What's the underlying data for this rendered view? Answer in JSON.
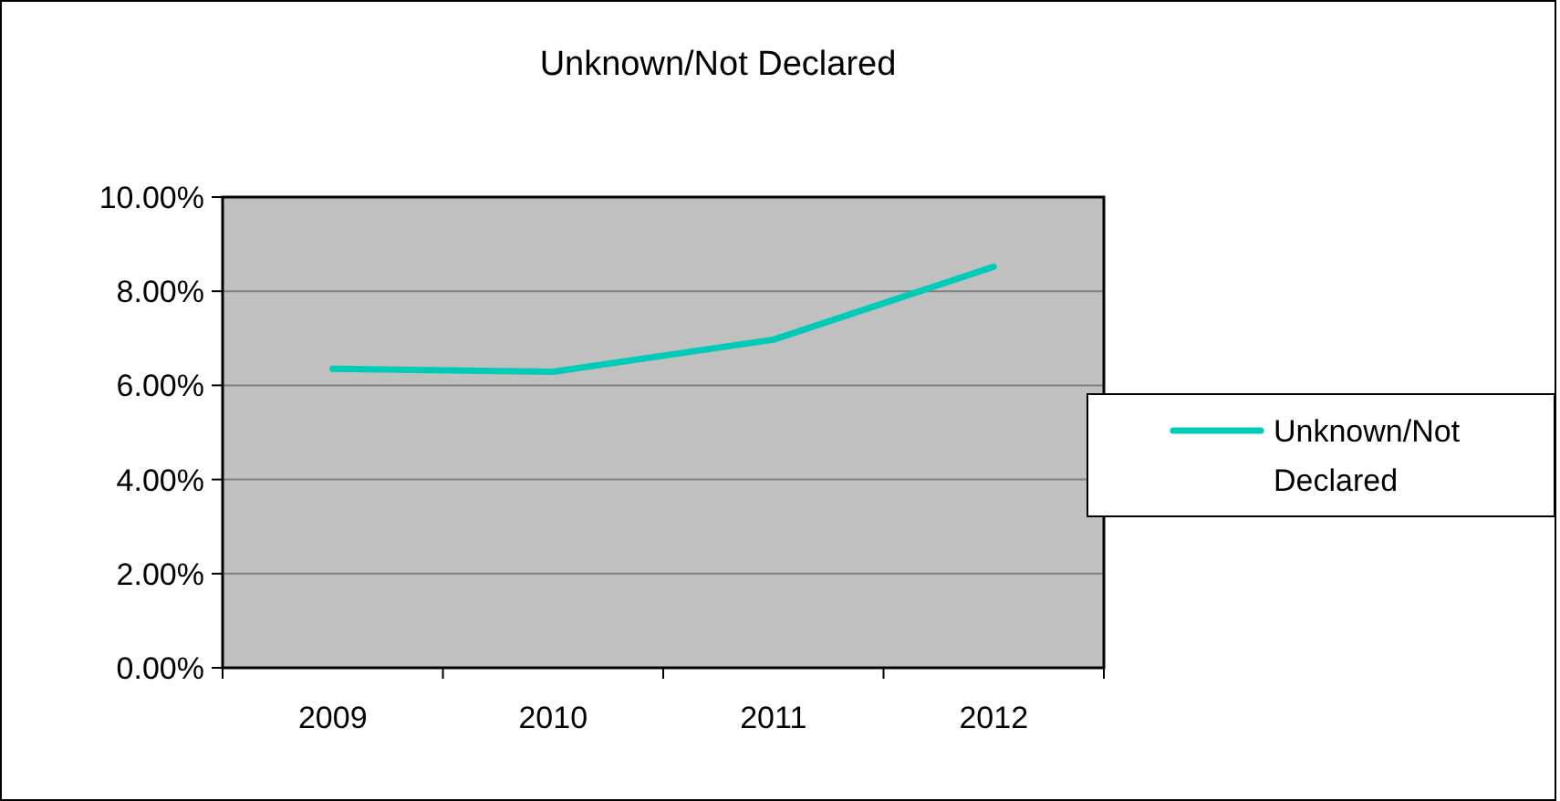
{
  "chart_data": {
    "type": "line",
    "title": "Unknown/Not Declared",
    "categories": [
      "2009",
      "2010",
      "2011",
      "2012"
    ],
    "series": [
      {
        "name": "Unknown/Not Declared",
        "color": "#00cbb8",
        "values": [
          6.35,
          6.29,
          6.97,
          8.52
        ]
      }
    ],
    "ylim": [
      0,
      10
    ],
    "yticks": [
      {
        "value": 0,
        "label": "0.00%"
      },
      {
        "value": 2,
        "label": "2.00%"
      },
      {
        "value": 4,
        "label": "4.00%"
      },
      {
        "value": 6,
        "label": "6.00%"
      },
      {
        "value": 8,
        "label": "8.00%"
      },
      {
        "value": 10,
        "label": "10.00%"
      }
    ],
    "grid": "y",
    "legend": "right",
    "marker": "none",
    "line_style": "solid"
  }
}
